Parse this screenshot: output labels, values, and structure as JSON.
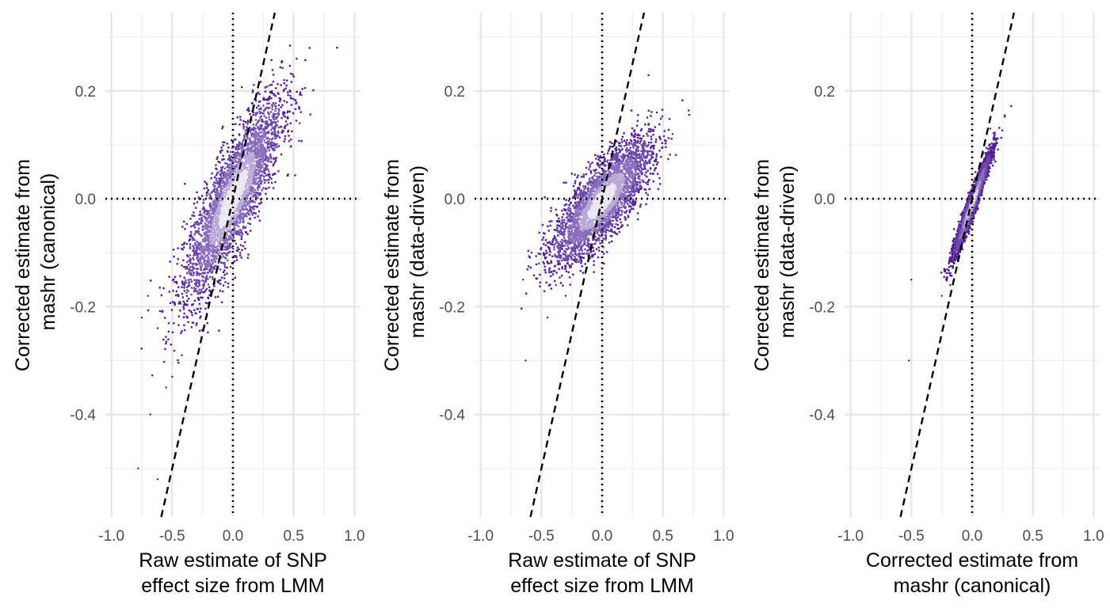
{
  "chart_data": [
    {
      "type": "scatter",
      "xlim": [
        -1.05,
        1.05
      ],
      "ylim": [
        -0.59,
        0.345
      ],
      "x_ticks": [
        -1.0,
        -0.5,
        0.0,
        0.5,
        1.0
      ],
      "x_tick_labels": [
        "-1.0",
        "-0.5",
        "0.0",
        "0.5",
        "1.0"
      ],
      "y_ticks": [
        0.2,
        0.0,
        -0.2,
        -0.4
      ],
      "y_tick_labels": [
        "0.2",
        "0.0",
        "-0.2",
        "-0.4"
      ],
      "xlabel": [
        "Raw estimate of SNP",
        "effect size from LMM"
      ],
      "ylabel": [
        "Corrected estimate from",
        "mashr (canonical)"
      ],
      "grid": true,
      "reference_lines": {
        "identity_dashed": true,
        "zero_dotted": true
      },
      "density": {
        "center": [
          0.0,
          0.0
        ],
        "slope": 0.38,
        "spread_x": 0.2,
        "spread_resid": 0.05
      },
      "sparse_points": [
        {
          "x": -0.78,
          "y": -0.5
        },
        {
          "x": -0.62,
          "y": -0.52
        },
        {
          "x": -0.68,
          "y": -0.4
        },
        {
          "x": -0.55,
          "y": -0.35
        },
        {
          "x": -0.5,
          "y": -0.33
        },
        {
          "x": -0.42,
          "y": -0.29
        },
        {
          "x": -0.75,
          "y": -0.22
        },
        {
          "x": -0.62,
          "y": -0.24
        },
        {
          "x": 0.55,
          "y": 0.14
        },
        {
          "x": 0.45,
          "y": 0.16
        },
        {
          "x": -0.7,
          "y": -0.18
        }
      ]
    },
    {
      "type": "scatter",
      "xlim": [
        -1.05,
        1.05
      ],
      "ylim": [
        -0.59,
        0.345
      ],
      "x_ticks": [
        -1.0,
        -0.5,
        0.0,
        0.5,
        1.0
      ],
      "x_tick_labels": [
        "-1.0",
        "-0.5",
        "0.0",
        "0.5",
        "1.0"
      ],
      "y_ticks": [
        0.2,
        0.0,
        -0.2,
        -0.4
      ],
      "y_tick_labels": [
        "0.2",
        "0.0",
        "-0.2",
        "-0.4"
      ],
      "xlabel": [
        "Raw estimate of SNP",
        "effect size from LMM"
      ],
      "ylabel": [
        "Corrected estimate from",
        "mashr (data-driven)"
      ],
      "grid": true,
      "reference_lines": {
        "identity_dashed": true,
        "zero_dotted": true
      },
      "density": {
        "center": [
          0.0,
          -0.005
        ],
        "slope": 0.22,
        "spread_x": 0.2,
        "spread_resid": 0.035
      },
      "sparse_points": [
        {
          "x": -0.65,
          "y": -0.15
        },
        {
          "x": -0.58,
          "y": -0.1
        },
        {
          "x": -0.45,
          "y": -0.22
        },
        {
          "x": -0.38,
          "y": -0.16
        },
        {
          "x": -0.3,
          "y": -0.18
        },
        {
          "x": -0.63,
          "y": -0.3
        },
        {
          "x": 0.58,
          "y": 0.12
        },
        {
          "x": 0.48,
          "y": 0.11
        },
        {
          "x": 0.45,
          "y": 0.16
        },
        {
          "x": -0.52,
          "y": -0.12
        }
      ]
    },
    {
      "type": "scatter",
      "xlim": [
        -1.05,
        1.05
      ],
      "ylim": [
        -0.59,
        0.345
      ],
      "x_ticks": [
        -1.0,
        -0.5,
        0.0,
        0.5,
        1.0
      ],
      "x_tick_labels": [
        "-1.0",
        "-0.5",
        "0.0",
        "0.5",
        "1.0"
      ],
      "y_ticks": [
        0.2,
        0.0,
        -0.2,
        -0.4
      ],
      "y_tick_labels": [
        "0.2",
        "0.0",
        "-0.2",
        "-0.4"
      ],
      "xlabel": [
        "Corrected estimate from",
        "mashr (canonical)"
      ],
      "ylabel": [
        "Corrected estimate from",
        "mashr (data-driven)"
      ],
      "grid": true,
      "reference_lines": {
        "identity_dashed": true,
        "zero_dotted": true
      },
      "density": {
        "center": [
          0.0,
          -0.01
        ],
        "slope": 0.6,
        "spread_x": 0.075,
        "spread_resid": 0.012
      },
      "sparse_points": [
        {
          "x": -0.2,
          "y": -0.2
        },
        {
          "x": -0.23,
          "y": -0.13
        },
        {
          "x": -0.18,
          "y": -0.16
        },
        {
          "x": -0.5,
          "y": -0.15
        },
        {
          "x": -0.52,
          "y": -0.3
        },
        {
          "x": 0.15,
          "y": 0.13
        },
        {
          "x": 0.12,
          "y": 0.12
        },
        {
          "x": -0.25,
          "y": -0.18
        }
      ]
    }
  ]
}
